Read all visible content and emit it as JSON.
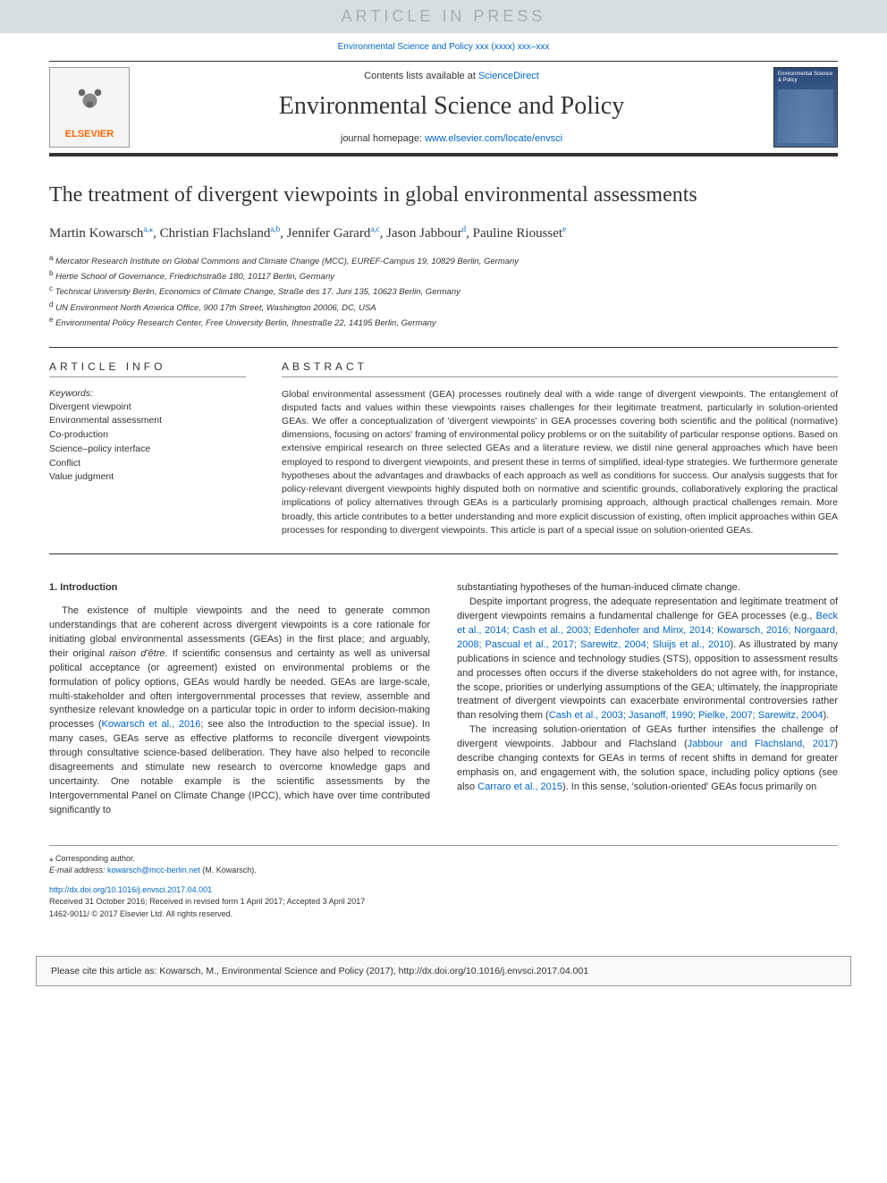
{
  "banner": {
    "text": "ARTICLE IN PRESS"
  },
  "top_doi": "Environmental Science and Policy xxx (xxxx) xxx–xxx",
  "header": {
    "contents_prefix": "Contents lists available at ",
    "contents_link": "ScienceDirect",
    "journal_title": "Environmental Science and Policy",
    "homepage_prefix": "journal homepage: ",
    "homepage_link": "www.elsevier.com/locate/envsci",
    "elsevier": "ELSEVIER",
    "cover_title": "Environmental Science & Policy"
  },
  "article": {
    "title": "The treatment of divergent viewpoints in global environmental assessments",
    "authors_html": [
      {
        "name": "Martin Kowarsch",
        "sup": "a,",
        "star": "⁎"
      },
      {
        "name": "Christian Flachsland",
        "sup": "a,b"
      },
      {
        "name": "Jennifer Garard",
        "sup": "a,c"
      },
      {
        "name": "Jason Jabbour",
        "sup": "d"
      },
      {
        "name": "Pauline Riousset",
        "sup": "e"
      }
    ],
    "affiliations": [
      {
        "sup": "a",
        "text": "Mercator Research Institute on Global Commons and Climate Change (MCC), EUREF-Campus 19, 10829 Berlin, Germany"
      },
      {
        "sup": "b",
        "text": "Hertie School of Governance, Friedrichstraße 180, 10117 Berlin, Germany"
      },
      {
        "sup": "c",
        "text": "Technical University Berlin, Economics of Climate Change, Straße des 17. Juni 135, 10623 Berlin, Germany"
      },
      {
        "sup": "d",
        "text": "UN Environment North America Office, 900 17th Street, Washington 20006, DC, USA"
      },
      {
        "sup": "e",
        "text": "Environmental Policy Research Center, Free University Berlin, Ihnestraße 22, 14195 Berlin, Germany"
      }
    ]
  },
  "info": {
    "heading": "ARTICLE INFO",
    "keywords_label": "Keywords:",
    "keywords": [
      "Divergent viewpoint",
      "Environmental assessment",
      "Co-production",
      "Science–policy interface",
      "Conflict",
      "Value judgment"
    ]
  },
  "abstract": {
    "heading": "ABSTRACT",
    "text": "Global environmental assessment (GEA) processes routinely deal with a wide range of divergent viewpoints. The entanglement of disputed facts and values within these viewpoints raises challenges for their legitimate treatment, particularly in solution-oriented GEAs. We offer a conceptualization of 'divergent viewpoints' in GEA processes covering both scientific and the political (normative) dimensions, focusing on actors' framing of environmental policy problems or on the suitability of particular response options. Based on extensive empirical research on three selected GEAs and a literature review, we distil nine general approaches which have been employed to respond to divergent viewpoints, and present these in terms of simplified, ideal-type strategies. We furthermore generate hypotheses about the advantages and drawbacks of each approach as well as conditions for success. Our analysis suggests that for policy-relevant divergent viewpoints highly disputed both on normative and scientific grounds, collaboratively exploring the practical implications of policy alternatives through GEAs is a particularly promising approach, although practical challenges remain. More broadly, this article contributes to a better understanding and more explicit discussion of existing, often implicit approaches within GEA processes for responding to divergent viewpoints. This article is part of a special issue on solution-oriented GEAs."
  },
  "body": {
    "section_heading": "1. Introduction",
    "left_p1_a": "The existence of multiple viewpoints and the need to generate common understandings that are coherent across divergent viewpoints is a core rationale for initiating global environmental assessments (GEAs) in the first place; and arguably, their original ",
    "left_p1_raison": "raison d'être",
    "left_p1_b": ". If scientific consensus and certainty as well as universal political acceptance (or agreement) existed on environmental problems or the formulation of policy options, GEAs would hardly be needed. GEAs are large-scale, multi-stakeholder and often intergovernmental processes that review, assemble and synthesize relevant knowledge on a particular topic in order to inform decision-making processes (",
    "left_p1_link1": "Kowarsch et al., 2016",
    "left_p1_c": "; see also the Introduction to the special issue). In many cases, GEAs serve as effective platforms to reconcile divergent viewpoints through consultative science-based deliberation. They have also helped to reconcile disagreements and stimulate new research to overcome knowledge gaps and uncertainty. One notable example is the scientific assessments by the Intergovernmental Panel on Climate Change (IPCC), which have over time contributed significantly to",
    "right_p0": "substantiating hypotheses of the human-induced climate change.",
    "right_p1_a": "Despite important progress, the adequate representation and legitimate treatment of divergent viewpoints remains a fundamental challenge for GEA processes (e.g., ",
    "right_p1_link1": "Beck et al., 2014; Cash et al., 2003; Edenhofer and Minx, 2014; Kowarsch, 2016; Norgaard, 2008; Pascual et al., 2017; Sarewitz, 2004; Sluijs et al., 2010",
    "right_p1_b": "). As illustrated by many publications in science and technology studies (STS), opposition to assessment results and processes often occurs if the diverse stakeholders do not agree with, for instance, the scope, priorities or underlying assumptions of the GEA; ultimately, the inappropriate treatment of divergent viewpoints can exacerbate environmental controversies rather than resolving them (",
    "right_p1_link2": "Cash et al., 2003; Jasanoff, 1990; Pielke, 2007; Sarewitz, 2004",
    "right_p1_c": ").",
    "right_p2_a": "The increasing solution-orientation of GEAs further intensifies the challenge of divergent viewpoints. Jabbour and Flachsland (",
    "right_p2_link1": "Jabbour and Flachsland, 2017",
    "right_p2_b": ") describe changing contexts for GEAs in terms of recent shifts in demand for greater emphasis on, and engagement with, the solution space, including policy options (see also ",
    "right_p2_link2": "Carraro et al., 2015",
    "right_p2_c": "). In this sense, 'solution-oriented' GEAs focus primarily on"
  },
  "footer": {
    "corresponding": "⁎ Corresponding author.",
    "email_label": "E-mail address: ",
    "email": "kowarsch@mcc-berlin.net",
    "email_suffix": " (M. Kowarsch).",
    "doi_link": "http://dx.doi.org/10.1016/j.envsci.2017.04.001",
    "received": "Received 31 October 2016; Received in revised form 1 April 2017; Accepted 3 April 2017",
    "copyright": "1462-9011/ © 2017 Elsevier Ltd. All rights reserved."
  },
  "cite_box": "Please cite this article as: Kowarsch, M., Environmental Science and Policy (2017), http://dx.doi.org/10.1016/j.envsci.2017.04.001"
}
